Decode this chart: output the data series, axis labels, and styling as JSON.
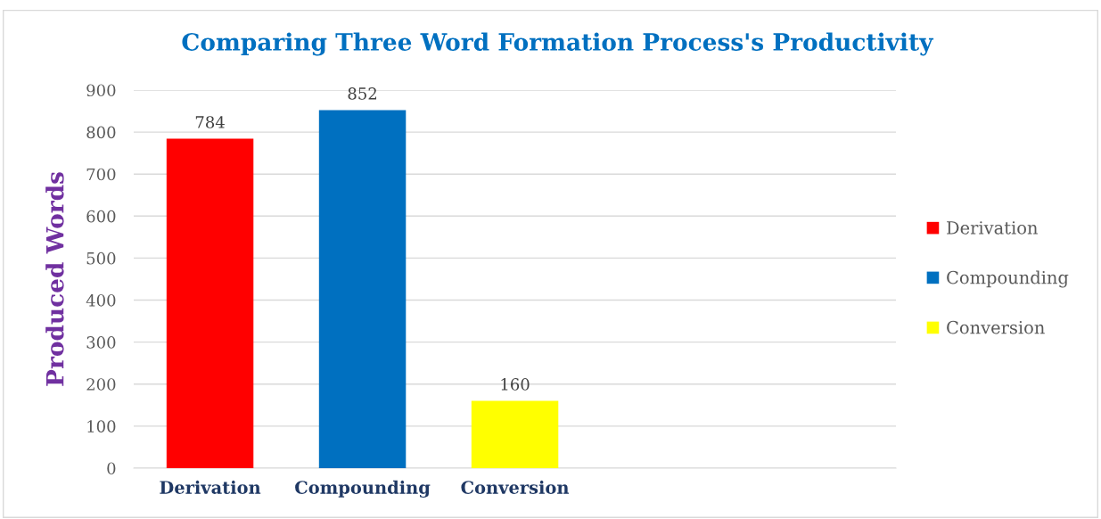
{
  "chart_data": {
    "type": "bar",
    "title": "Comparing Three Word Formation Process's Productivity",
    "ylabel": "Produced Words",
    "categories": [
      "Derivation",
      "Compounding",
      "Conversion",
      null,
      null
    ],
    "series": [
      {
        "name": "Derivation",
        "color": "#ff0000",
        "values": [
          784,
          null,
          null,
          null,
          null
        ]
      },
      {
        "name": "Compounding",
        "color": "#0070c0",
        "values": [
          null,
          852,
          null,
          null,
          null
        ]
      },
      {
        "name": "Conversion",
        "color": "#ffff00",
        "values": [
          null,
          null,
          160,
          null,
          null
        ]
      }
    ],
    "ylim": [
      0,
      900
    ],
    "yticks": [
      0,
      100,
      200,
      300,
      400,
      500,
      600,
      700,
      800,
      900
    ],
    "grid": "y",
    "legend": "right",
    "data_labels": true
  }
}
